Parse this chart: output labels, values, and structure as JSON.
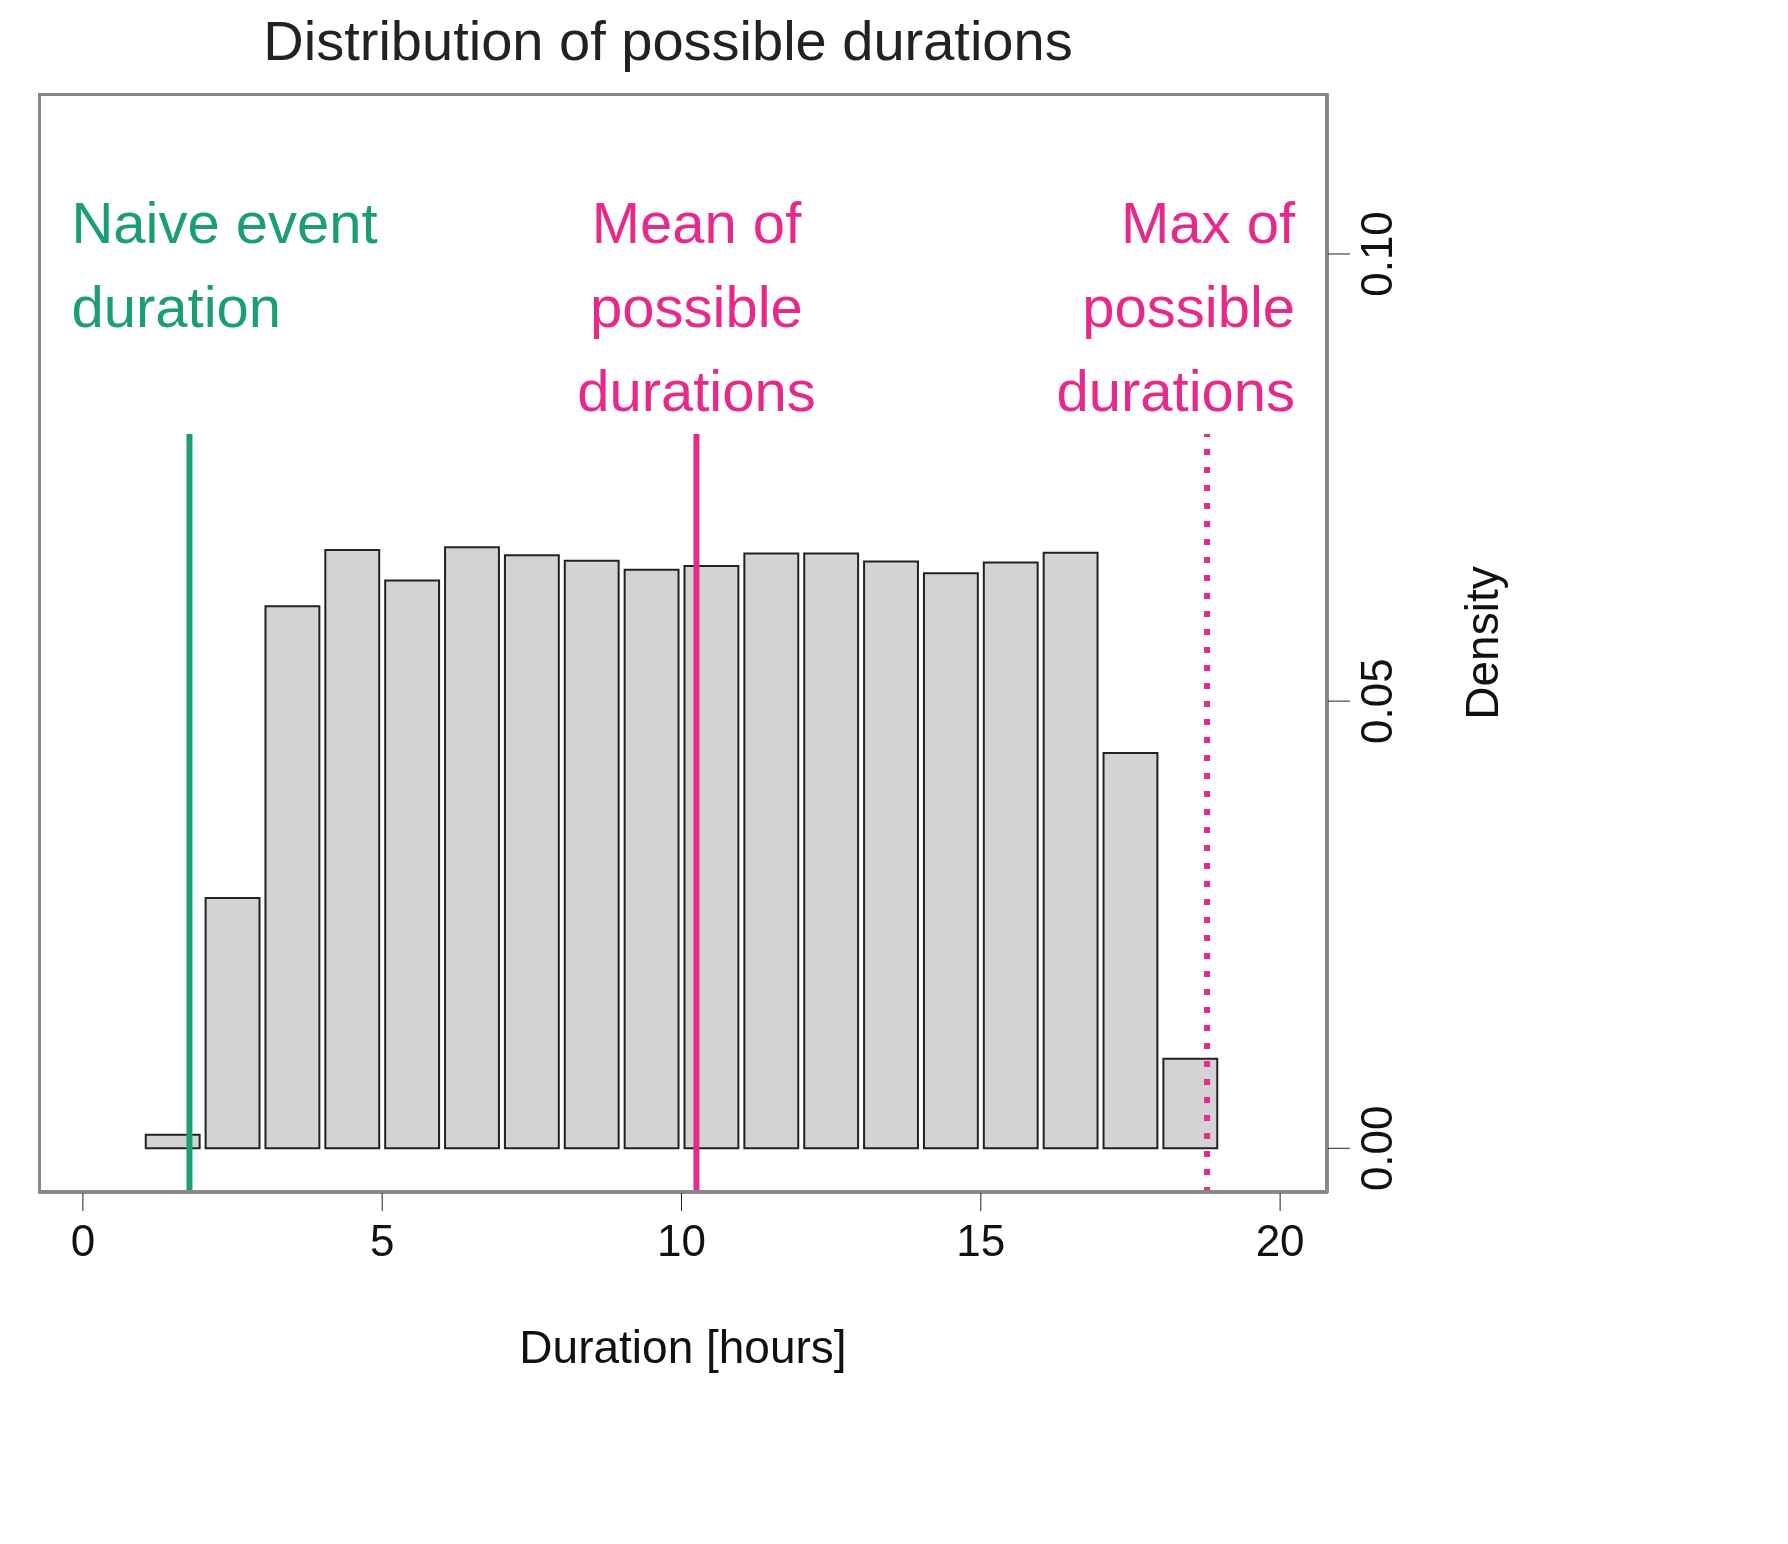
{
  "chart_data": {
    "type": "histogram",
    "title": "Distribution of possible durations",
    "xlabel": "Duration [hours]",
    "ylabel": "Density",
    "bins": [
      1,
      2,
      3,
      4,
      5,
      6,
      7,
      8,
      9,
      10,
      11,
      12,
      13,
      14,
      15,
      16,
      17,
      18,
      19
    ],
    "values": [
      0.0015,
      0.028,
      0.0606,
      0.0669,
      0.0635,
      0.0672,
      0.0663,
      0.0657,
      0.0647,
      0.0651,
      0.0665,
      0.0665,
      0.0656,
      0.0643,
      0.0655,
      0.0666,
      0.0442,
      0.01
    ],
    "color": "#d3d3d3",
    "xlim": [
      -0.75,
      20.8
    ],
    "xticks": [
      0,
      5,
      10,
      15,
      20
    ],
    "ylim": [
      -0.005,
      0.118
    ],
    "yticks": [
      {
        "value": 0,
        "label": "0.00"
      },
      {
        "value": 0.05,
        "label": "0.05"
      },
      {
        "value": 0.1,
        "label": "0.10"
      }
    ],
    "ref_lines": [
      {
        "axis": "x",
        "value": 1.78,
        "label": "Naive event\nduration",
        "color": "#1b9e77",
        "line_style": "solid"
      },
      {
        "axis": "x",
        "value": 10.25,
        "label": "Mean of\npossible\ndurations",
        "color": "#e7298a",
        "line_style": "solid"
      },
      {
        "axis": "x",
        "value": 18.78,
        "label": "Max of\npossible\ndurations",
        "color": "#e7298a",
        "line_style": "dotted"
      }
    ],
    "grid": false,
    "legend": false
  }
}
